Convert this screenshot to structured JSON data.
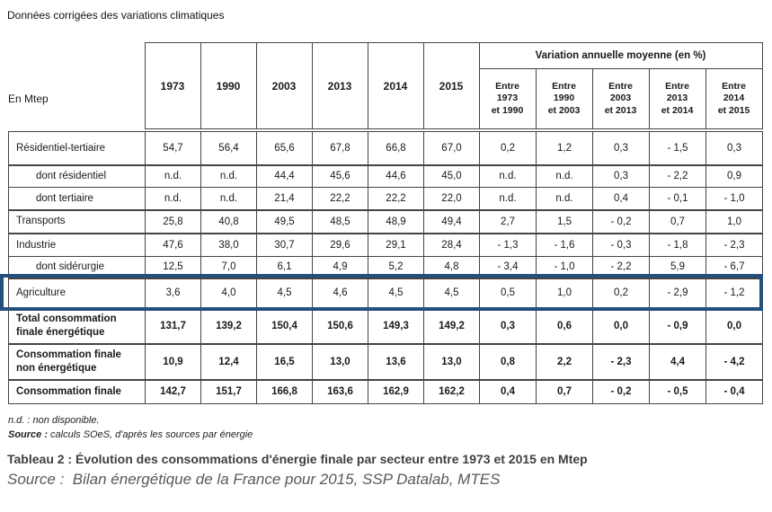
{
  "page": {
    "top_note": "Données corrigées des variations climatiques"
  },
  "table": {
    "unit_label": "En Mtep",
    "years": [
      "1973",
      "1990",
      "2003",
      "2013",
      "2014",
      "2015"
    ],
    "variation_header": "Variation annuelle moyenne (en %)",
    "variation_columns": [
      {
        "lines": [
          "Entre",
          "1973",
          "et 1990"
        ]
      },
      {
        "lines": [
          "Entre",
          "1990",
          "et 2003"
        ]
      },
      {
        "lines": [
          "Entre",
          "2003",
          "et 2013"
        ]
      },
      {
        "lines": [
          "Entre",
          "2013",
          "et 2014"
        ]
      },
      {
        "lines": [
          "Entre",
          "2014",
          "et 2015"
        ]
      }
    ],
    "rows": [
      {
        "label": "Résidentiel-tertiaire",
        "indent": false,
        "bold": false,
        "highlight": false,
        "values": [
          "54,7",
          "56,4",
          "65,6",
          "67,8",
          "66,8",
          "67,0",
          "0,2",
          "1,2",
          "0,3",
          "- 1,5",
          "0,3"
        ]
      },
      {
        "label": "dont résidentiel",
        "indent": true,
        "bold": false,
        "highlight": false,
        "values": [
          "n.d.",
          "n.d.",
          "44,4",
          "45,6",
          "44,6",
          "45,0",
          "n.d.",
          "n.d.",
          "0,3",
          "- 2,2",
          "0,9"
        ]
      },
      {
        "label": "dont tertiaire",
        "indent": true,
        "bold": false,
        "highlight": false,
        "values": [
          "n.d.",
          "n.d.",
          "21,4",
          "22,2",
          "22,2",
          "22,0",
          "n.d.",
          "n.d.",
          "0,4",
          "- 0,1",
          "- 1,0"
        ]
      },
      {
        "label": "Transports",
        "indent": false,
        "bold": false,
        "highlight": false,
        "values": [
          "25,8",
          "40,8",
          "49,5",
          "48,5",
          "48,9",
          "49,4",
          "2,7",
          "1,5",
          "- 0,2",
          "0,7",
          "1,0"
        ]
      },
      {
        "label": "Industrie",
        "indent": false,
        "bold": false,
        "highlight": false,
        "values": [
          "47,6",
          "38,0",
          "30,7",
          "29,6",
          "29,1",
          "28,4",
          "- 1,3",
          "- 1,6",
          "- 0,3",
          "- 1,8",
          "- 2,3"
        ]
      },
      {
        "label": "dont sidérurgie",
        "indent": true,
        "bold": false,
        "highlight": false,
        "values": [
          "12,5",
          "7,0",
          "6,1",
          "4,9",
          "5,2",
          "4,8",
          "- 3,4",
          "- 1,0",
          "- 2,2",
          "5,9",
          "- 6,7"
        ]
      },
      {
        "label": "Agriculture",
        "indent": false,
        "bold": false,
        "highlight": true,
        "values": [
          "3,6",
          "4,0",
          "4,5",
          "4,6",
          "4,5",
          "4,5",
          "0,5",
          "1,0",
          "0,2",
          "- 2,9",
          "- 1,2"
        ]
      },
      {
        "label": "Total consommation finale énergétique",
        "indent": false,
        "bold": true,
        "highlight": false,
        "values": [
          "131,7",
          "139,2",
          "150,4",
          "150,6",
          "149,3",
          "149,2",
          "0,3",
          "0,6",
          "0,0",
          "- 0,9",
          "0,0"
        ]
      },
      {
        "label": "Consommation finale non énergétique",
        "indent": false,
        "bold": true,
        "highlight": false,
        "values": [
          "10,9",
          "12,4",
          "16,5",
          "13,0",
          "13,6",
          "13,0",
          "0,8",
          "2,2",
          "- 2,3",
          "4,4",
          "- 4,2"
        ]
      },
      {
        "label": "Consommation finale",
        "indent": false,
        "bold": true,
        "highlight": false,
        "values": [
          "142,7",
          "151,7",
          "166,8",
          "163,6",
          "162,9",
          "162,2",
          "0,4",
          "0,7",
          "- 0,2",
          "- 0,5",
          "- 0,4"
        ]
      }
    ]
  },
  "footnotes": {
    "nd_note": "n.d. : non disponible.",
    "source_label": "Source :",
    "source_text": "calculs SOeS, d'après les sources par énergie"
  },
  "caption": {
    "table_caption": "Tableau 2 : Évolution des consommations d'énergie finale par secteur entre 1973 et 2015 en Mtep",
    "source_caption": "Source :  Bilan énergétique de la France pour 2015, SSP Datalab, MTES"
  },
  "colors": {
    "highlight_border": "#24507E",
    "table_border": "#444444",
    "caption_color": "#3f3f3f",
    "source_color": "#595959"
  }
}
